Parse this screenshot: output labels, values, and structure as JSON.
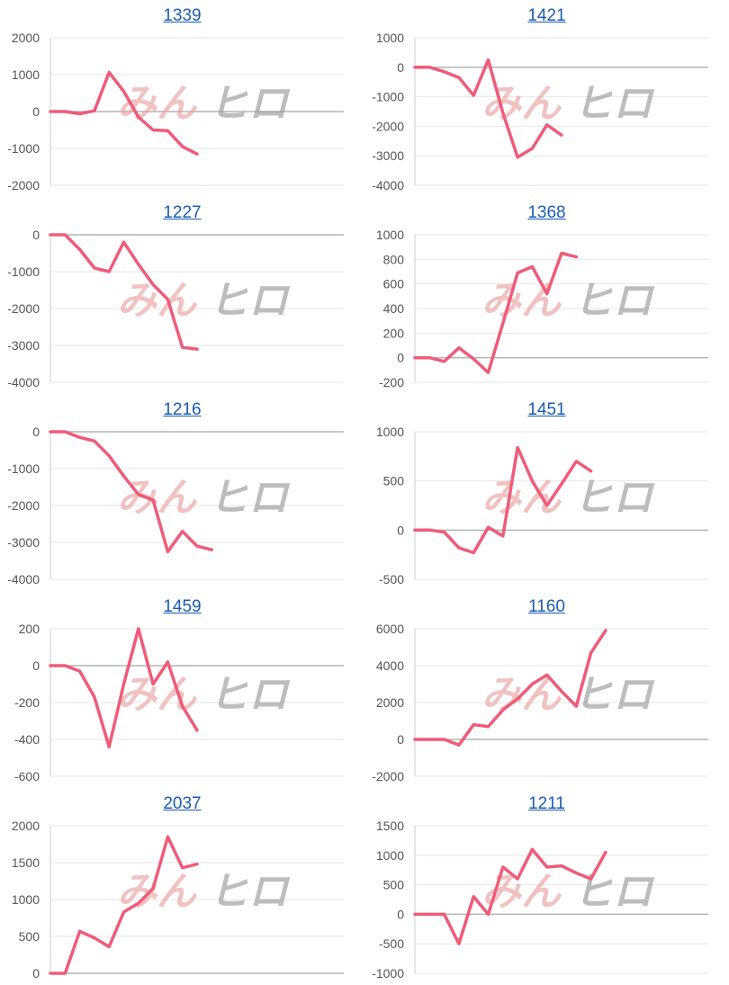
{
  "watermark": {
    "part1": "みん",
    "part2": "ヒロ"
  },
  "colors": {
    "line": "#ef5b78",
    "link": "#1a5bb5",
    "grid": "#e6e6e6"
  },
  "chart_data": [
    {
      "type": "line",
      "title": "1339",
      "ylim": [
        -2000,
        2000
      ],
      "yticks": [
        2000,
        1000,
        0,
        -1000,
        -2000
      ],
      "xmax": 20,
      "series": [
        {
          "values": [
            0,
            0,
            -60,
            20,
            1060,
            550,
            -150,
            -500,
            -520,
            -950,
            -1150
          ]
        }
      ]
    },
    {
      "type": "line",
      "title": "1421",
      "ylim": [
        -4000,
        1000
      ],
      "yticks": [
        1000,
        0,
        -1000,
        -2000,
        -3000,
        -4000
      ],
      "xmax": 20,
      "series": [
        {
          "values": [
            0,
            0,
            -150,
            -350,
            -950,
            250,
            -1550,
            -3050,
            -2750,
            -1950,
            -2300
          ]
        }
      ]
    },
    {
      "type": "line",
      "title": "1227",
      "ylim": [
        -4000,
        0
      ],
      "yticks": [
        0,
        -1000,
        -2000,
        -3000,
        -4000
      ],
      "xmax": 20,
      "series": [
        {
          "values": [
            0,
            0,
            -400,
            -900,
            -1000,
            -200,
            -800,
            -1350,
            -1750,
            -3050,
            -3100
          ]
        }
      ]
    },
    {
      "type": "line",
      "title": "1368",
      "ylim": [
        -200,
        1000
      ],
      "yticks": [
        1000,
        800,
        600,
        400,
        200,
        0,
        -200
      ],
      "xmax": 20,
      "series": [
        {
          "values": [
            0,
            0,
            -30,
            80,
            -10,
            -120,
            280,
            690,
            740,
            520,
            850,
            820
          ]
        }
      ]
    },
    {
      "type": "line",
      "title": "1216",
      "ylim": [
        -4000,
        0
      ],
      "yticks": [
        0,
        -1000,
        -2000,
        -3000,
        -4000
      ],
      "xmax": 20,
      "series": [
        {
          "values": [
            0,
            0,
            -150,
            -250,
            -650,
            -1200,
            -1700,
            -1850,
            -3250,
            -2700,
            -3100,
            -3200
          ]
        }
      ]
    },
    {
      "type": "line",
      "title": "1451",
      "ylim": [
        -500,
        1000
      ],
      "yticks": [
        1000,
        500,
        0,
        -500
      ],
      "xmax": 20,
      "series": [
        {
          "values": [
            0,
            0,
            -20,
            -180,
            -230,
            30,
            -60,
            840,
            500,
            250,
            470,
            700,
            600
          ]
        }
      ]
    },
    {
      "type": "line",
      "title": "1459",
      "ylim": [
        -600,
        200
      ],
      "yticks": [
        200,
        0,
        -200,
        -400,
        -600
      ],
      "xmax": 20,
      "series": [
        {
          "values": [
            0,
            0,
            -30,
            -170,
            -440,
            -100,
            200,
            -100,
            20,
            -220,
            -350
          ]
        }
      ]
    },
    {
      "type": "line",
      "title": "1160",
      "ylim": [
        -2000,
        6000
      ],
      "yticks": [
        6000,
        4000,
        2000,
        0,
        -2000
      ],
      "xmax": 20,
      "series": [
        {
          "values": [
            0,
            0,
            0,
            -300,
            800,
            700,
            1600,
            2200,
            3000,
            3500,
            2600,
            1800,
            4700,
            5900
          ]
        }
      ]
    },
    {
      "type": "line",
      "title": "2037",
      "ylim": [
        0,
        2000
      ],
      "yticks": [
        2000,
        1500,
        1000,
        500,
        0
      ],
      "xmax": 20,
      "series": [
        {
          "values": [
            0,
            0,
            570,
            480,
            360,
            830,
            950,
            1150,
            1850,
            1430,
            1480
          ]
        }
      ]
    },
    {
      "type": "line",
      "title": "1211",
      "ylim": [
        -1000,
        1500
      ],
      "yticks": [
        1500,
        1000,
        500,
        0,
        -500,
        -1000
      ],
      "xmax": 20,
      "series": [
        {
          "values": [
            0,
            0,
            0,
            -500,
            300,
            0,
            800,
            600,
            1100,
            800,
            820,
            700,
            600,
            1050
          ]
        }
      ]
    }
  ]
}
